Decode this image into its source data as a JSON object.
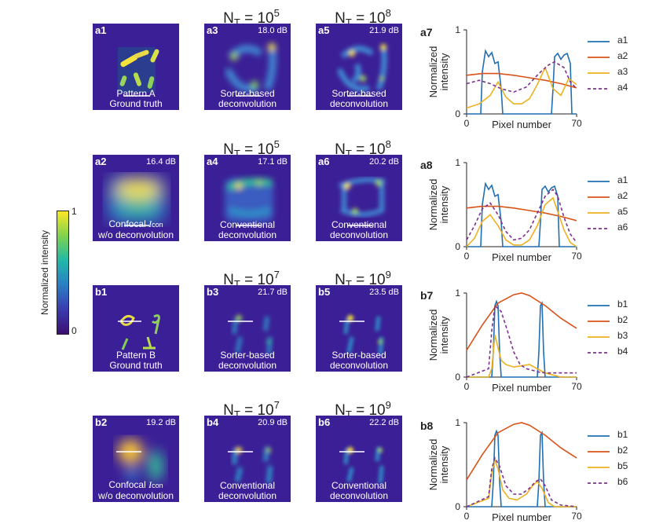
{
  "headers": [
    {
      "n": "N",
      "sub": "T",
      "eq": " = 10",
      "exp": "5"
    },
    {
      "n": "N",
      "sub": "T",
      "eq": " = 10",
      "exp": "8"
    },
    {
      "n": "N",
      "sub": "T",
      "eq": " = 10",
      "exp": "5"
    },
    {
      "n": "N",
      "sub": "T",
      "eq": " = 10",
      "exp": "8"
    },
    {
      "n": "N",
      "sub": "T",
      "eq": " = 10",
      "exp": "7"
    },
    {
      "n": "N",
      "sub": "T",
      "eq": " = 10",
      "exp": "9"
    },
    {
      "n": "N",
      "sub": "T",
      "eq": " = 10",
      "exp": "7"
    },
    {
      "n": "N",
      "sub": "T",
      "eq": " = 10",
      "exp": "9"
    }
  ],
  "panels": [
    {
      "label": "a1",
      "db": "",
      "cap1": "Pattern A",
      "cap2": "Ground truth"
    },
    {
      "label": "a3",
      "db": "18.0 dB",
      "cap1": "Sorter-based",
      "cap2": "deconvolution"
    },
    {
      "label": "a5",
      "db": "21.9 dB",
      "cap1": "Sorter-based",
      "cap2": "deconvolution"
    },
    {
      "label": "a2",
      "db": "16.4 dB",
      "cap1": "Confocal ",
      "cap1i": "I",
      "cap1s": "con",
      "cap2": "w/o deconvolution"
    },
    {
      "label": "a4",
      "db": "17.1 dB",
      "cap1": "Conventional",
      "cap2": "deconvolution"
    },
    {
      "label": "a6",
      "db": "20.2 dB",
      "cap1": "Conventional",
      "cap2": "deconvolution"
    },
    {
      "label": "b1",
      "db": "",
      "cap1": "Pattern B",
      "cap2": "Ground truth"
    },
    {
      "label": "b3",
      "db": "21.7 dB",
      "cap1": "Sorter-based",
      "cap2": "deconvolution"
    },
    {
      "label": "b5",
      "db": "23.5 dB",
      "cap1": "Sorter-based",
      "cap2": "deconvolution"
    },
    {
      "label": "b2",
      "db": "19.2 dB",
      "cap1": "Confocal ",
      "cap1i": "I",
      "cap1s": "con",
      "cap2": "w/o deconvolution"
    },
    {
      "label": "b4",
      "db": "20.9 dB",
      "cap1": "Conventional",
      "cap2": "deconvolution"
    },
    {
      "label": "b6",
      "db": "22.2 dB",
      "cap1": "Conventional",
      "cap2": "deconvolution"
    }
  ],
  "colorbar": {
    "title": "Normalized intensity",
    "max": "1",
    "min": "0"
  },
  "colors": {
    "c1": "#1f6fb4",
    "c2": "#d95319",
    "c3": "#edb120",
    "c4": "#7e2f8e"
  },
  "chart_data": [
    {
      "type": "line",
      "panel": "a7",
      "xlabel": "Pixel number",
      "ylabel": "Normalized intensity",
      "xlim": [
        0,
        70
      ],
      "ylim": [
        0,
        1
      ],
      "xticks": [
        "0",
        "70"
      ],
      "yticks": [
        "0",
        "1"
      ],
      "series": [
        {
          "name": "a1",
          "x": [
            0,
            9,
            10,
            12,
            14,
            16,
            18,
            20,
            22,
            23,
            24,
            54,
            55,
            56,
            58,
            60,
            62,
            64,
            66,
            67,
            70
          ],
          "y": [
            0,
            0,
            0.5,
            0.75,
            0.68,
            0.73,
            0.6,
            0.62,
            0.3,
            0,
            0,
            0,
            0.3,
            0.68,
            0.72,
            0.65,
            0.7,
            0.72,
            0.6,
            0,
            0
          ]
        },
        {
          "name": "a2",
          "x": [
            0,
            10,
            20,
            30,
            40,
            50,
            60,
            70
          ],
          "y": [
            0.46,
            0.48,
            0.48,
            0.46,
            0.43,
            0.4,
            0.36,
            0.31
          ]
        },
        {
          "name": "a3",
          "x": [
            0,
            8,
            15,
            20,
            25,
            30,
            35,
            40,
            45,
            50,
            55,
            60,
            65,
            70
          ],
          "y": [
            0.07,
            0.12,
            0.22,
            0.38,
            0.2,
            0.12,
            0.12,
            0.18,
            0.35,
            0.55,
            0.3,
            0.22,
            0.42,
            0.35
          ]
        },
        {
          "name": "a4",
          "x": [
            0,
            8,
            15,
            22,
            30,
            38,
            46,
            52,
            56,
            62,
            66,
            70
          ],
          "y": [
            0.36,
            0.4,
            0.36,
            0.3,
            0.26,
            0.32,
            0.48,
            0.58,
            0.62,
            0.55,
            0.38,
            0.3
          ]
        }
      ]
    },
    {
      "type": "line",
      "panel": "a8",
      "xlabel": "Pixel number",
      "ylabel": "Normalized intensity",
      "xlim": [
        0,
        70
      ],
      "ylim": [
        0,
        1
      ],
      "xticks": [
        "0",
        "70"
      ],
      "yticks": [
        "0",
        "1"
      ],
      "series": [
        {
          "name": "a1",
          "x": [
            0,
            9,
            10,
            12,
            14,
            16,
            18,
            20,
            22,
            23,
            24,
            46,
            47,
            48,
            50,
            52,
            54,
            56,
            58,
            59,
            70
          ],
          "y": [
            0,
            0,
            0.5,
            0.75,
            0.68,
            0.73,
            0.6,
            0.62,
            0.3,
            0,
            0,
            0,
            0.3,
            0.68,
            0.72,
            0.65,
            0.7,
            0.72,
            0.6,
            0,
            0
          ]
        },
        {
          "name": "a2",
          "x": [
            0,
            10,
            20,
            30,
            40,
            50,
            60,
            70
          ],
          "y": [
            0.46,
            0.48,
            0.48,
            0.46,
            0.43,
            0.4,
            0.36,
            0.31
          ]
        },
        {
          "name": "a5",
          "x": [
            0,
            5,
            10,
            15,
            20,
            25,
            30,
            35,
            40,
            45,
            50,
            55,
            58,
            62,
            66,
            70
          ],
          "y": [
            0,
            0.1,
            0.3,
            0.38,
            0.25,
            0.08,
            0.02,
            0.02,
            0.08,
            0.25,
            0.5,
            0.58,
            0.42,
            0.2,
            0.05,
            0
          ]
        },
        {
          "name": "a6",
          "x": [
            0,
            5,
            10,
            15,
            20,
            25,
            30,
            35,
            40,
            45,
            50,
            55,
            58,
            62,
            66,
            70
          ],
          "y": [
            0.08,
            0.25,
            0.45,
            0.52,
            0.38,
            0.18,
            0.08,
            0.1,
            0.2,
            0.4,
            0.6,
            0.68,
            0.6,
            0.35,
            0.15,
            0.05
          ]
        }
      ]
    },
    {
      "type": "line",
      "panel": "b7",
      "xlabel": "Pixel number",
      "ylabel": "Normalized intensity",
      "xlim": [
        0,
        70
      ],
      "ylim": [
        0,
        1
      ],
      "xticks": [
        "0",
        "70"
      ],
      "yticks": [
        "0",
        "1"
      ],
      "series": [
        {
          "name": "b1",
          "x": [
            0,
            16,
            17,
            18,
            19,
            20,
            21,
            22,
            45,
            46,
            47,
            48,
            49,
            50,
            70
          ],
          "y": [
            0,
            0,
            0.3,
            0.85,
            0.9,
            0.85,
            0.3,
            0,
            0,
            0.3,
            0.85,
            0.88,
            0.3,
            0,
            0
          ]
        },
        {
          "name": "b2",
          "x": [
            0,
            10,
            20,
            30,
            35,
            40,
            50,
            60,
            70
          ],
          "y": [
            0.32,
            0.62,
            0.88,
            0.98,
            1.0,
            0.97,
            0.85,
            0.7,
            0.58
          ]
        },
        {
          "name": "b3",
          "x": [
            0,
            14,
            16,
            18,
            20,
            22,
            25,
            30,
            40,
            50,
            60,
            70
          ],
          "y": [
            0,
            0,
            0.1,
            0.5,
            0.35,
            0.2,
            0.15,
            0.12,
            0.15,
            0.05,
            0,
            0
          ]
        },
        {
          "name": "b4",
          "x": [
            0,
            14,
            16,
            18,
            22,
            26,
            30,
            34,
            38,
            42,
            46,
            50,
            60,
            70
          ],
          "y": [
            0,
            0.1,
            0.55,
            0.85,
            0.78,
            0.55,
            0.3,
            0.15,
            0.1,
            0.08,
            0.06,
            0.05,
            0.05,
            0.05
          ]
        }
      ]
    },
    {
      "type": "line",
      "panel": "b8",
      "xlabel": "Pixel number",
      "ylabel": "Normalized intensity",
      "xlim": [
        0,
        70
      ],
      "ylim": [
        0,
        1
      ],
      "xticks": [
        "0",
        "70"
      ],
      "yticks": [
        "0",
        "1"
      ],
      "series": [
        {
          "name": "b1",
          "x": [
            0,
            16,
            17,
            18,
            19,
            20,
            21,
            22,
            45,
            46,
            47,
            48,
            49,
            50,
            70
          ],
          "y": [
            0,
            0,
            0.3,
            0.85,
            0.9,
            0.85,
            0.3,
            0,
            0,
            0.3,
            0.85,
            0.88,
            0.3,
            0,
            0
          ]
        },
        {
          "name": "b2",
          "x": [
            0,
            10,
            20,
            30,
            35,
            40,
            50,
            60,
            70
          ],
          "y": [
            0.32,
            0.62,
            0.88,
            0.98,
            1.0,
            0.97,
            0.85,
            0.7,
            0.58
          ]
        },
        {
          "name": "b5",
          "x": [
            0,
            14,
            16,
            18,
            20,
            23,
            27,
            32,
            38,
            42,
            45,
            48,
            52,
            56,
            70
          ],
          "y": [
            0,
            0.1,
            0.4,
            0.55,
            0.45,
            0.2,
            0.1,
            0.08,
            0.15,
            0.25,
            0.3,
            0.22,
            0.05,
            0,
            0
          ]
        },
        {
          "name": "b6",
          "x": [
            0,
            14,
            16,
            18,
            21,
            25,
            30,
            35,
            40,
            44,
            47,
            50,
            54,
            60,
            70
          ],
          "y": [
            0,
            0.12,
            0.45,
            0.58,
            0.48,
            0.25,
            0.15,
            0.15,
            0.22,
            0.3,
            0.33,
            0.25,
            0.08,
            0.02,
            0
          ]
        }
      ]
    }
  ]
}
